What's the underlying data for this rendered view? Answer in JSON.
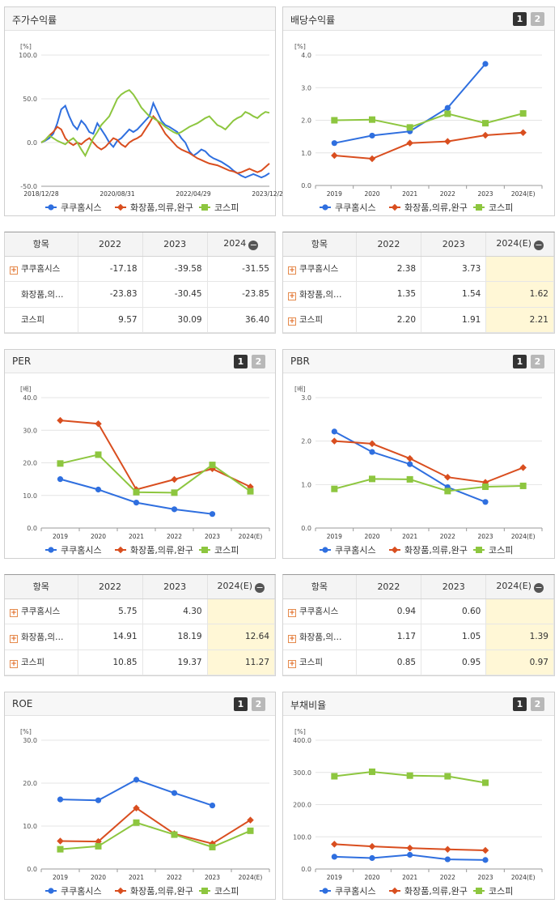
{
  "colors": {
    "s1": "#2f6fdf",
    "s2": "#d94e1f",
    "s3": "#8dc63f"
  },
  "panels": {
    "stock_return": {
      "title": "주가수익률"
    },
    "dividend": {
      "title": "배당수익률",
      "pg1": "1",
      "pg2": "2"
    },
    "per": {
      "title": "PER",
      "pg1": "1",
      "pg2": "2"
    },
    "pbr": {
      "title": "PBR",
      "pg1": "1",
      "pg2": "2"
    },
    "roe": {
      "title": "ROE",
      "pg1": "1",
      "pg2": "2"
    },
    "debt": {
      "title": "부채비율",
      "pg1": "1",
      "pg2": "2"
    }
  },
  "legend": [
    "쿠쿠홈시스",
    "화장품,의류,완구",
    "코스피"
  ],
  "chart_data": [
    {
      "id": "stock_return",
      "type": "line",
      "unit": "[%]",
      "ylim": [
        -50,
        100
      ],
      "yticks": [
        "100.0",
        "50.0",
        "0.0",
        "-50.0"
      ],
      "xticks": [
        "2018/12/28",
        "2020/08/31",
        "2022/04/29",
        "2023/12/28"
      ],
      "series": [
        {
          "name": "쿠쿠홈시스",
          "values": [
            0,
            2,
            5,
            10,
            22,
            38,
            42,
            30,
            20,
            15,
            25,
            20,
            12,
            10,
            22,
            15,
            8,
            0,
            -5,
            2,
            5,
            10,
            15,
            12,
            15,
            20,
            25,
            30,
            45,
            35,
            25,
            20,
            18,
            15,
            12,
            5,
            0,
            -10,
            -15,
            -12,
            -8,
            -10,
            -15,
            -18,
            -20,
            -22,
            -25,
            -28,
            -32,
            -35,
            -38,
            -40,
            -38,
            -36,
            -38,
            -40,
            -38,
            -35
          ]
        },
        {
          "name": "화장품,의류,완구",
          "values": [
            0,
            3,
            8,
            12,
            18,
            15,
            5,
            0,
            -3,
            0,
            -2,
            2,
            5,
            0,
            -5,
            -8,
            -5,
            0,
            5,
            3,
            -2,
            -5,
            0,
            3,
            5,
            8,
            15,
            22,
            30,
            25,
            18,
            10,
            5,
            0,
            -5,
            -8,
            -10,
            -12,
            -15,
            -18,
            -20,
            -22,
            -24,
            -25,
            -26,
            -28,
            -30,
            -32,
            -33,
            -35,
            -34,
            -32,
            -30,
            -32,
            -34,
            -32,
            -28,
            -24
          ]
        },
        {
          "name": "코스피",
          "values": [
            0,
            3,
            8,
            5,
            2,
            0,
            -2,
            2,
            5,
            0,
            -8,
            -15,
            -5,
            5,
            12,
            20,
            25,
            30,
            40,
            50,
            55,
            58,
            60,
            55,
            48,
            40,
            35,
            30,
            28,
            25,
            22,
            18,
            15,
            12,
            10,
            12,
            15,
            18,
            20,
            22,
            25,
            28,
            30,
            25,
            20,
            18,
            15,
            20,
            25,
            28,
            30,
            35,
            33,
            30,
            28,
            32,
            35,
            34
          ]
        }
      ]
    },
    {
      "id": "dividend",
      "type": "line",
      "unit": "[%]",
      "ylim": [
        0,
        4
      ],
      "yticks": [
        "4.0",
        "3.0",
        "2.0",
        "1.0",
        "0.0"
      ],
      "x": [
        "2019",
        "2020",
        "2021",
        "2022",
        "2023",
        "2024(E)"
      ],
      "series": [
        {
          "name": "쿠쿠홈시스",
          "values": [
            1.3,
            1.53,
            1.66,
            2.38,
            3.73,
            null
          ]
        },
        {
          "name": "화장품,의류,완구",
          "values": [
            0.92,
            0.82,
            1.3,
            1.35,
            1.54,
            1.62
          ]
        },
        {
          "name": "코스피",
          "values": [
            2.0,
            2.02,
            1.78,
            2.2,
            1.91,
            2.21
          ]
        }
      ]
    },
    {
      "id": "per",
      "type": "line",
      "unit": "[배]",
      "ylim": [
        0,
        40
      ],
      "yticks": [
        "40.0",
        "30.0",
        "20.0",
        "10.0",
        "0.0"
      ],
      "x": [
        "2019",
        "2020",
        "2021",
        "2022",
        "2023",
        "2024(E)"
      ],
      "series": [
        {
          "name": "쿠쿠홈시스",
          "values": [
            15.0,
            11.8,
            7.8,
            5.75,
            4.3,
            null
          ]
        },
        {
          "name": "화장품,의류,완구",
          "values": [
            33.0,
            32.0,
            11.8,
            14.91,
            18.19,
            12.64
          ]
        },
        {
          "name": "코스피",
          "values": [
            19.8,
            22.5,
            11.0,
            10.85,
            19.37,
            11.27
          ]
        }
      ]
    },
    {
      "id": "pbr",
      "type": "line",
      "unit": "[배]",
      "ylim": [
        0,
        3
      ],
      "yticks": [
        "3.0",
        "2.0",
        "1.0",
        "0.0"
      ],
      "x": [
        "2019",
        "2020",
        "2021",
        "2022",
        "2023",
        "2024(E)"
      ],
      "series": [
        {
          "name": "쿠쿠홈시스",
          "values": [
            2.22,
            1.75,
            1.47,
            0.94,
            0.6,
            null
          ]
        },
        {
          "name": "화장품,의류,완구",
          "values": [
            2.0,
            1.94,
            1.6,
            1.17,
            1.05,
            1.39
          ]
        },
        {
          "name": "코스피",
          "values": [
            0.9,
            1.13,
            1.12,
            0.85,
            0.95,
            0.97
          ]
        }
      ]
    },
    {
      "id": "roe",
      "type": "line",
      "unit": "[%]",
      "ylim": [
        0,
        30
      ],
      "yticks": [
        "30.0",
        "20.0",
        "10.0",
        "0.0"
      ],
      "x": [
        "2019",
        "2020",
        "2021",
        "2022",
        "2023",
        "2024(E)"
      ],
      "series": [
        {
          "name": "쿠쿠홈시스",
          "values": [
            16.2,
            16.0,
            20.8,
            17.7,
            14.8,
            null
          ]
        },
        {
          "name": "화장품,의류,완구",
          "values": [
            6.5,
            6.4,
            14.2,
            8.2,
            5.9,
            11.4
          ]
        },
        {
          "name": "코스피",
          "values": [
            4.6,
            5.3,
            10.8,
            8.0,
            5.1,
            8.9
          ]
        }
      ]
    },
    {
      "id": "debt",
      "type": "line",
      "unit": "[%]",
      "ylim": [
        0,
        400
      ],
      "yticks": [
        "400.0",
        "300.0",
        "200.0",
        "100.0",
        "0.0"
      ],
      "x": [
        "2019",
        "2020",
        "2021",
        "2022",
        "2023",
        "2024(E)"
      ],
      "series": [
        {
          "name": "쿠쿠홈시스",
          "values": [
            38,
            34,
            44,
            30,
            28,
            null
          ]
        },
        {
          "name": "화장품,의류,완구",
          "values": [
            77,
            70,
            65,
            61,
            58,
            null
          ]
        },
        {
          "name": "코스피",
          "values": [
            288,
            302,
            290,
            288,
            268,
            null
          ]
        }
      ]
    }
  ],
  "tables": {
    "stock_return": {
      "headers": [
        "항목",
        "2022",
        "2023",
        "2024"
      ],
      "rows": [
        {
          "name": "쿠쿠홈시스",
          "plus": true,
          "v": [
            "-17.18",
            "-39.58",
            "-31.55"
          ]
        },
        {
          "name": "화장품,의…",
          "plus": false,
          "v": [
            "-23.83",
            "-30.45",
            "-23.85"
          ]
        },
        {
          "name": "코스피",
          "plus": false,
          "v": [
            "9.57",
            "30.09",
            "36.40"
          ]
        }
      ]
    },
    "dividend": {
      "headers": [
        "항목",
        "2022",
        "2023",
        "2024(E)"
      ],
      "rows": [
        {
          "name": "쿠쿠홈시스",
          "plus": true,
          "v": [
            "2.38",
            "3.73",
            ""
          ]
        },
        {
          "name": "화장품,의…",
          "plus": true,
          "v": [
            "1.35",
            "1.54",
            "1.62"
          ]
        },
        {
          "name": "코스피",
          "plus": true,
          "v": [
            "2.20",
            "1.91",
            "2.21"
          ]
        }
      ]
    },
    "per": {
      "headers": [
        "항목",
        "2022",
        "2023",
        "2024(E)"
      ],
      "rows": [
        {
          "name": "쿠쿠홈시스",
          "plus": true,
          "v": [
            "5.75",
            "4.30",
            ""
          ]
        },
        {
          "name": "화장품,의…",
          "plus": true,
          "v": [
            "14.91",
            "18.19",
            "12.64"
          ]
        },
        {
          "name": "코스피",
          "plus": true,
          "v": [
            "10.85",
            "19.37",
            "11.27"
          ]
        }
      ]
    },
    "pbr": {
      "headers": [
        "항목",
        "2022",
        "2023",
        "2024(E)"
      ],
      "rows": [
        {
          "name": "쿠쿠홈시스",
          "plus": true,
          "v": [
            "0.94",
            "0.60",
            ""
          ]
        },
        {
          "name": "화장품,의…",
          "plus": true,
          "v": [
            "1.17",
            "1.05",
            "1.39"
          ]
        },
        {
          "name": "코스피",
          "plus": true,
          "v": [
            "0.85",
            "0.95",
            "0.97"
          ]
        }
      ]
    }
  }
}
